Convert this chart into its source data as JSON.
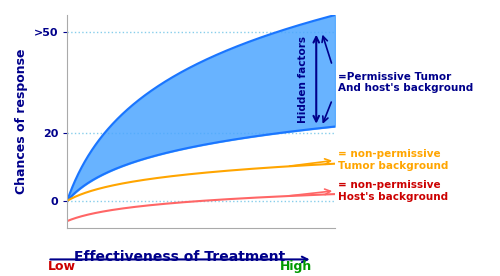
{
  "title": "",
  "ylabel": "Chances of response",
  "xlabel": "Effectiveness of Treatment",
  "xlabel_color": "#00008B",
  "ylabel_color": "#00008B",
  "x_low_label": "Low",
  "x_low_color": "#cc0000",
  "x_high_label": "High",
  "x_high_color": "#009900",
  "fill_color": "#4da6ff",
  "fill_alpha": 0.85,
  "upper_curve_color": "#1a75ff",
  "lower_curve_color": "#1a75ff",
  "orange_curve_color": "#FFA500",
  "red_curve_color": "#FF6666",
  "dotted_line_color": "#87CEEB",
  "annotation1_line1": "=Permissive Tumor",
  "annotation1_line2": "And host's background",
  "annotation1_color": "#00008B",
  "annotation2_line1": "= non-permissive",
  "annotation2_line2": "Tumor background",
  "annotation2_color": "#FFA500",
  "annotation3_line1": "= non-permissive",
  "annotation3_line2": "Host's background",
  "annotation3_color": "#cc0000",
  "hidden_factors_text": "Hidden factors",
  "hidden_factors_color": "#00008B",
  "background_color": "#ffffff",
  "xmin": 0,
  "xmax": 10,
  "ymin": -8,
  "ymax": 55
}
